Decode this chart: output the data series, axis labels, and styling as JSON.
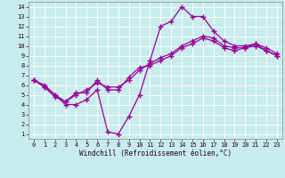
{
  "xlabel": "Windchill (Refroidissement éolien,°C)",
  "xlim": [
    -0.5,
    23.5
  ],
  "ylim": [
    0.5,
    14.5
  ],
  "xticks": [
    0,
    1,
    2,
    3,
    4,
    5,
    6,
    7,
    8,
    9,
    10,
    11,
    12,
    13,
    14,
    15,
    16,
    17,
    18,
    19,
    20,
    21,
    22,
    23
  ],
  "yticks": [
    1,
    2,
    3,
    4,
    5,
    6,
    7,
    8,
    9,
    10,
    11,
    12,
    13,
    14
  ],
  "background_color": "#c8ecec",
  "grid_color": "#ffffff",
  "line_color": "#990099",
  "lines": [
    {
      "x": [
        0,
        1,
        2,
        3,
        4,
        5,
        6,
        7,
        8,
        9,
        10,
        11,
        12,
        13,
        14,
        15,
        16,
        17,
        18,
        19,
        20,
        21,
        22,
        23
      ],
      "y": [
        6.5,
        6.0,
        5.0,
        4.0,
        4.0,
        4.5,
        5.5,
        1.2,
        1.0,
        2.8,
        5.0,
        8.5,
        12.0,
        12.5,
        14.0,
        13.0,
        13.0,
        11.5,
        10.5,
        10.0,
        10.0,
        10.2,
        9.5,
        9.0
      ]
    },
    {
      "x": [
        0,
        1,
        2,
        3,
        4,
        5,
        6,
        7,
        8,
        9,
        10,
        11,
        12,
        13,
        14,
        15,
        16,
        17,
        18,
        19,
        20,
        21,
        22,
        23
      ],
      "y": [
        6.5,
        5.8,
        4.8,
        4.3,
        5.2,
        5.2,
        6.5,
        5.5,
        5.5,
        6.8,
        7.8,
        8.0,
        8.5,
        9.0,
        9.8,
        10.2,
        10.8,
        10.5,
        9.8,
        9.5,
        9.8,
        10.0,
        9.5,
        9.0
      ]
    },
    {
      "x": [
        0,
        1,
        2,
        3,
        4,
        5,
        6,
        7,
        8,
        9,
        10,
        11,
        12,
        13,
        14,
        15,
        16,
        17,
        18,
        19,
        20,
        21,
        22,
        23
      ],
      "y": [
        6.5,
        5.8,
        5.0,
        4.3,
        5.0,
        5.5,
        6.2,
        5.8,
        5.8,
        6.5,
        7.5,
        8.2,
        8.8,
        9.2,
        10.0,
        10.5,
        11.0,
        10.8,
        10.0,
        9.8,
        9.8,
        10.2,
        9.8,
        9.2
      ]
    }
  ],
  "marker": "+",
  "markersize": 4,
  "markeredgewidth": 1.0,
  "linewidth": 0.9,
  "tick_fontsize": 5,
  "xlabel_fontsize": 5.5
}
